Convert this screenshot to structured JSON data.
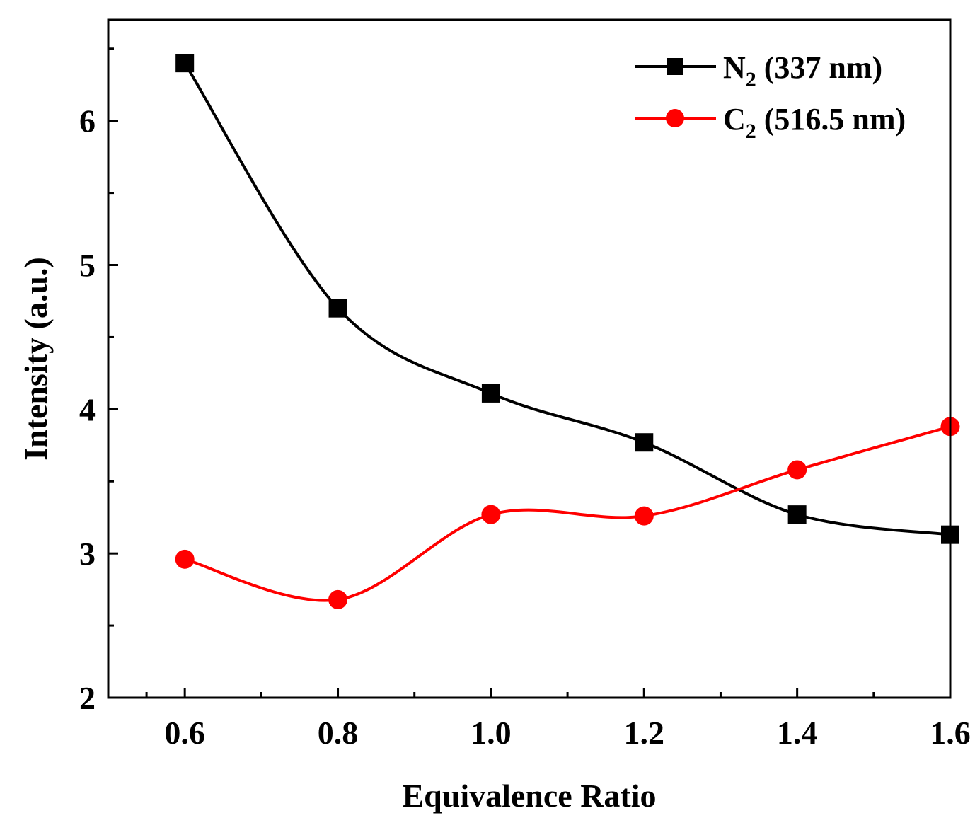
{
  "chart_data": {
    "type": "line",
    "title": "",
    "xlabel": "Equivalence Ratio",
    "ylabel": "Intensity (a.u.)",
    "xlim": [
      0.5,
      1.6
    ],
    "ylim": [
      2,
      6.7
    ],
    "x": [
      0.6,
      0.8,
      1.0,
      1.2,
      1.4,
      1.6
    ],
    "x_tick_labels": [
      "0.6",
      "0.8",
      "1.0",
      "1.2",
      "1.4",
      "1.6"
    ],
    "y_ticks": [
      2,
      3,
      4,
      5,
      6
    ],
    "y_tick_labels": [
      "2",
      "3",
      "4",
      "5",
      "6"
    ],
    "grid": false,
    "legend_position": "top-right",
    "series": [
      {
        "name": "N2 (337 nm)",
        "label_main": "N",
        "label_sub": "2",
        "label_rest": " (337 nm)",
        "marker": "square",
        "color": "#000000",
        "values": [
          6.4,
          4.7,
          4.11,
          3.77,
          3.27,
          3.13
        ]
      },
      {
        "name": "C2 (516.5 nm)",
        "label_main": "C",
        "label_sub": "2",
        "label_rest": " (516.5 nm)",
        "marker": "circle",
        "color": "#ff0000",
        "values": [
          2.96,
          2.68,
          3.27,
          3.26,
          3.58,
          3.88
        ]
      }
    ]
  }
}
